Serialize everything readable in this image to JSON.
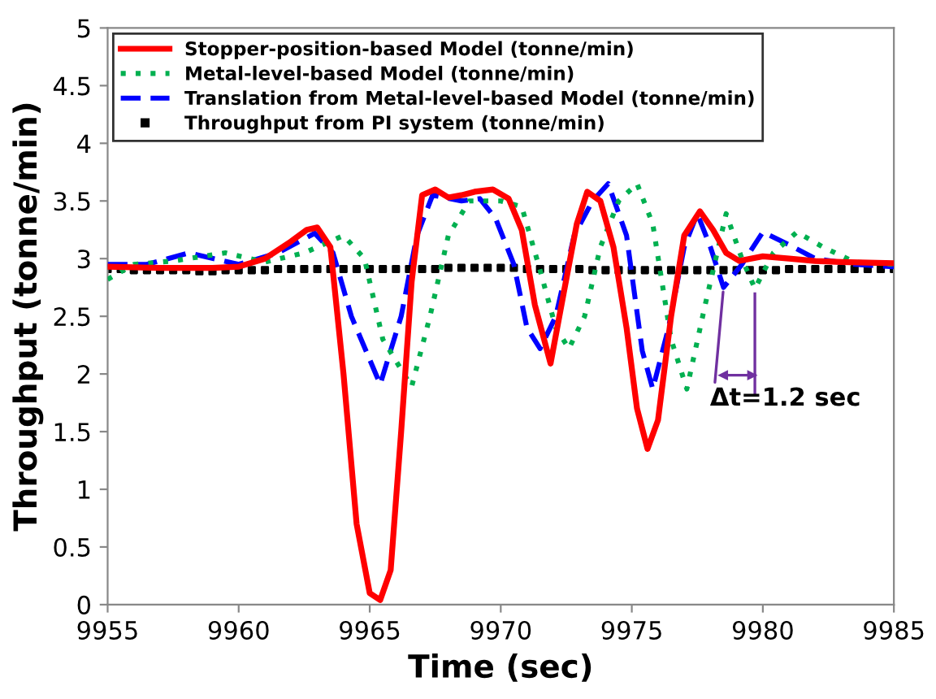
{
  "chart_data": {
    "type": "line",
    "xlabel": "Time (sec)",
    "ylabel": "Throughput (tonne/min)",
    "xlim": [
      9955,
      9985
    ],
    "xticks": [
      9955,
      9960,
      9965,
      9970,
      9975,
      9980,
      9985
    ],
    "ylim": [
      0,
      5
    ],
    "yticks": [
      0,
      0.5,
      1,
      1.5,
      2,
      2.5,
      3,
      3.5,
      4,
      4.5,
      5
    ],
    "grid": false,
    "legend": "top left",
    "annotations": [
      {
        "text": "Δt=1.2 sec",
        "x": 9978.5,
        "y": 2.75
      }
    ],
    "series": [
      {
        "name": "Stopper-position-based Model (tonne/min)",
        "color": "#ff0000",
        "line_style": "solid",
        "marker": "none",
        "x": [
          9955,
          9957,
          9959,
          9960,
          9961,
          9962,
          9962.6,
          9963,
          9963.5,
          9964,
          9964.5,
          9965,
          9965.4,
          9965.8,
          9966.2,
          9966.6,
          9967,
          9967.5,
          9968,
          9968.5,
          9969,
          9969.7,
          9970.3,
          9970.8,
          9971.3,
          9971.9,
          9972.4,
          9972.9,
          9973.3,
          9973.8,
          9974.3,
          9974.8,
          9975.2,
          9975.6,
          9976,
          9976.5,
          9977,
          9977.6,
          9978.1,
          9978.6,
          9979.1,
          9980,
          9981,
          9982,
          9983,
          9985
        ],
        "values": [
          2.93,
          2.92,
          2.92,
          2.93,
          3.0,
          3.15,
          3.25,
          3.27,
          3.1,
          2.0,
          0.7,
          0.1,
          0.04,
          0.3,
          1.5,
          2.8,
          3.55,
          3.6,
          3.53,
          3.55,
          3.58,
          3.6,
          3.52,
          3.25,
          2.6,
          2.09,
          2.7,
          3.3,
          3.58,
          3.5,
          3.1,
          2.4,
          1.7,
          1.35,
          1.6,
          2.5,
          3.2,
          3.41,
          3.25,
          3.05,
          2.98,
          3.02,
          3.0,
          2.98,
          2.97,
          2.96
        ]
      },
      {
        "name": "Metal-level-based Model (tonne/min)",
        "color": "#00b050",
        "line_style": "dotted",
        "marker": "none",
        "x": [
          9955,
          9956,
          9957.5,
          9959.5,
          9961,
          9962.5,
          9964,
          9964.8,
          9965.5,
          9966.6,
          9967.3,
          9968,
          9968.8,
          9970,
          9970.8,
          9971.5,
          9972.1,
          9972.6,
          9973.2,
          9973.8,
          9974.5,
          9975.2,
          9975.8,
          9976.5,
          9977.1,
          9977.8,
          9978.6,
          9979.2,
          9979.7,
          9980.4,
          9981.3,
          9982.3,
          9983.5,
          9985
        ],
        "values": [
          2.82,
          2.95,
          2.98,
          3.05,
          2.97,
          3.05,
          3.2,
          3.0,
          2.3,
          1.89,
          2.5,
          3.2,
          3.5,
          3.5,
          3.45,
          2.9,
          2.4,
          2.22,
          2.5,
          3.1,
          3.5,
          3.65,
          3.3,
          2.3,
          1.87,
          2.6,
          3.39,
          3.0,
          2.74,
          3.05,
          3.23,
          3.1,
          2.97,
          2.95
        ]
      },
      {
        "name": "Translation from Metal-level-based Model (tonne/min)",
        "color": "#0000ff",
        "line_style": "dashed",
        "marker": "none",
        "x": [
          9955,
          9956.5,
          9958.1,
          9960,
          9961.5,
          9962.9,
          9963.6,
          9964.3,
          9965.4,
          9966.2,
          9966.8,
          9967.4,
          9968.5,
          9969.2,
          9969.8,
          9970.5,
          9971,
          9971.5,
          9972.1,
          9972.8,
          9973.5,
          9974.1,
          9974.8,
          9975.4,
          9975.8,
          9976.4,
          9977,
          9977.5,
          9978,
          9978.5,
          9979.2,
          9980,
          9981,
          9982,
          9983.5,
          9985
        ],
        "values": [
          2.95,
          2.95,
          3.05,
          2.95,
          3.05,
          3.22,
          3.05,
          2.5,
          1.91,
          2.5,
          3.2,
          3.55,
          3.5,
          3.52,
          3.35,
          2.95,
          2.4,
          2.22,
          2.5,
          3.2,
          3.5,
          3.65,
          3.2,
          2.2,
          1.87,
          2.4,
          3.1,
          3.39,
          3.1,
          2.75,
          2.95,
          3.23,
          3.12,
          3.0,
          2.95,
          2.93
        ]
      },
      {
        "name": "Throughput from PI system (tonne/min)",
        "color": "#000000",
        "type": "scatter",
        "marker": "square",
        "x": [
          9955,
          9955.5,
          9956,
          9956.5,
          9957,
          9957.5,
          9958,
          9958.5,
          9959,
          9959.5,
          9960,
          9960.5,
          9961,
          9961.5,
          9962,
          9962.5,
          9963,
          9963.5,
          9964,
          9964.5,
          9965,
          9965.5,
          9966,
          9966.5,
          9967,
          9967.5,
          9968,
          9968.5,
          9969,
          9969.5,
          9970,
          9970.5,
          9971,
          9971.5,
          9972,
          9972.5,
          9973,
          9973.5,
          9974,
          9974.5,
          9975,
          9975.5,
          9976,
          9976.5,
          9977,
          9977.5,
          9978,
          9978.5,
          9979,
          9979.5,
          9980,
          9980.5,
          9981,
          9981.5,
          9982,
          9982.5,
          9983,
          9983.5,
          9984,
          9984.5,
          9985
        ],
        "values": [
          2.91,
          2.91,
          2.9,
          2.9,
          2.9,
          2.9,
          2.9,
          2.89,
          2.89,
          2.9,
          2.9,
          2.9,
          2.9,
          2.91,
          2.91,
          2.91,
          2.91,
          2.91,
          2.91,
          2.91,
          2.91,
          2.91,
          2.91,
          2.91,
          2.91,
          2.91,
          2.92,
          2.92,
          2.92,
          2.92,
          2.92,
          2.92,
          2.91,
          2.91,
          2.91,
          2.91,
          2.91,
          2.9,
          2.9,
          2.9,
          2.9,
          2.9,
          2.9,
          2.9,
          2.9,
          2.9,
          2.9,
          2.9,
          2.9,
          2.9,
          2.9,
          2.9,
          2.91,
          2.91,
          2.91,
          2.91,
          2.91,
          2.91,
          2.91,
          2.91,
          2.91
        ]
      }
    ]
  }
}
